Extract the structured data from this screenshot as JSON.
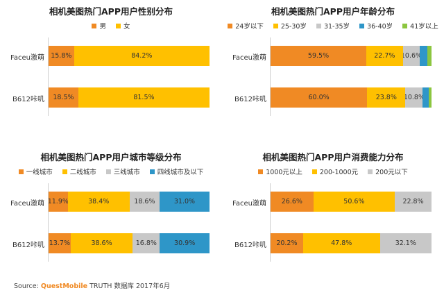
{
  "source": {
    "prefix": "Source:",
    "brand": "QuestMobile",
    "suffix": "TRUTH 数据库 2017年6月"
  },
  "chart_data": [
    {
      "type": "bar",
      "stacked": true,
      "orientation": "horizontal",
      "title": "相机美图热门APP用户性别分布",
      "categories": [
        "Faceu激萌",
        "B612咔叽"
      ],
      "series": [
        {
          "name": "男",
          "color": "#f08a24",
          "values": [
            15.8,
            18.5
          ]
        },
        {
          "name": "女",
          "color": "#ffc000",
          "values": [
            84.2,
            81.5
          ]
        }
      ],
      "value_unit": "%"
    },
    {
      "type": "bar",
      "stacked": true,
      "orientation": "horizontal",
      "title": "相机美图热门APP用户年龄分布",
      "categories": [
        "Faceu激萌",
        "B612咔叽"
      ],
      "series": [
        {
          "name": "24岁以下",
          "color": "#f08a24",
          "values": [
            59.5,
            60.0
          ]
        },
        {
          "name": "25-30岁",
          "color": "#ffc000",
          "values": [
            22.7,
            23.8
          ]
        },
        {
          "name": "31-35岁",
          "color": "#c8c8c8",
          "values": [
            10.6,
            10.8
          ]
        },
        {
          "name": "36-40岁",
          "color": "#2e96c8",
          "values": [
            4.8,
            3.6
          ]
        },
        {
          "name": "41岁以上",
          "color": "#8cc63f",
          "values": [
            2.4,
            1.8
          ]
        }
      ],
      "value_unit": "%",
      "label_threshold": 8
    },
    {
      "type": "bar",
      "stacked": true,
      "orientation": "horizontal",
      "title": "相机美图热门APP用户城市等级分布",
      "categories": [
        "Faceu激萌",
        "B612咔叽"
      ],
      "series": [
        {
          "name": "一线城市",
          "color": "#f08a24",
          "values": [
            11.9,
            13.7
          ]
        },
        {
          "name": "二线城市",
          "color": "#ffc000",
          "values": [
            38.4,
            38.6
          ]
        },
        {
          "name": "三线城市",
          "color": "#c8c8c8",
          "values": [
            18.6,
            16.8
          ]
        },
        {
          "name": "四线城市及以下",
          "color": "#2e96c8",
          "values": [
            31.0,
            30.9
          ]
        }
      ],
      "value_unit": "%"
    },
    {
      "type": "bar",
      "stacked": true,
      "orientation": "horizontal",
      "title": "相机美图热门APP用户消费能力分布",
      "categories": [
        "Faceu激萌",
        "B612咔叽"
      ],
      "series": [
        {
          "name": "1000元以上",
          "color": "#f08a24",
          "values": [
            26.6,
            20.2
          ]
        },
        {
          "name": "200-1000元",
          "color": "#ffc000",
          "values": [
            50.6,
            47.8
          ]
        },
        {
          "name": "200元以下",
          "color": "#c8c8c8",
          "values": [
            22.8,
            32.1
          ]
        }
      ],
      "value_unit": "%"
    }
  ]
}
